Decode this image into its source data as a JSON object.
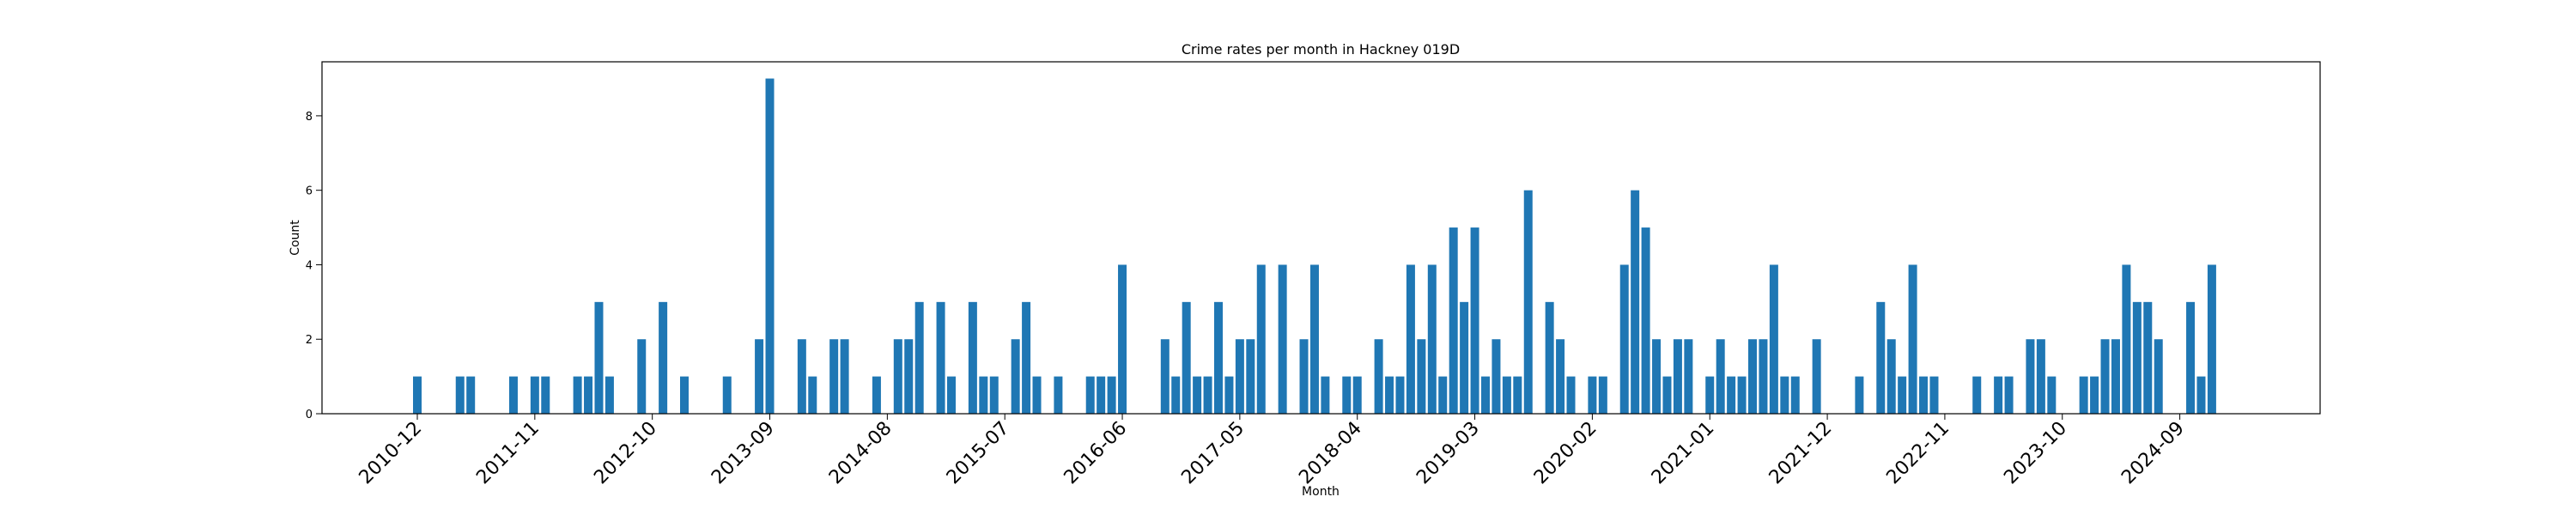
{
  "chart_data": {
    "type": "bar",
    "title": "Crime rates per month in Hackney 019D",
    "xlabel": "Month",
    "ylabel": "Count",
    "ylim": [
      0,
      9.45
    ],
    "yticks": [
      0,
      2,
      4,
      6,
      8
    ],
    "xtick_labels": [
      "2010-12",
      "2011-11",
      "2012-10",
      "2013-09",
      "2014-08",
      "2015-07",
      "2016-06",
      "2017-05",
      "2018-04",
      "2019-03",
      "2020-02",
      "2021-01",
      "2021-12",
      "2022-11",
      "2023-10",
      "2024-09"
    ],
    "color": "#1f77b4",
    "grid": false,
    "series": [
      {
        "points": [
          [
            "2010-12",
            1
          ],
          [
            "2011-04",
            1
          ],
          [
            "2011-05",
            1
          ],
          [
            "2011-09",
            1
          ],
          [
            "2011-11",
            1
          ],
          [
            "2011-12",
            1
          ],
          [
            "2012-03",
            1
          ],
          [
            "2012-04",
            1
          ],
          [
            "2012-05",
            3
          ],
          [
            "2012-06",
            1
          ],
          [
            "2012-09",
            2
          ],
          [
            "2012-11",
            3
          ],
          [
            "2013-01",
            1
          ],
          [
            "2013-05",
            1
          ],
          [
            "2013-08",
            2
          ],
          [
            "2013-09",
            9
          ],
          [
            "2013-12",
            2
          ],
          [
            "2014-01",
            1
          ],
          [
            "2014-03",
            2
          ],
          [
            "2014-04",
            2
          ],
          [
            "2014-07",
            1
          ],
          [
            "2014-09",
            2
          ],
          [
            "2014-10",
            2
          ],
          [
            "2014-11",
            3
          ],
          [
            "2015-01",
            3
          ],
          [
            "2015-02",
            1
          ],
          [
            "2015-04",
            3
          ],
          [
            "2015-05",
            1
          ],
          [
            "2015-06",
            1
          ],
          [
            "2015-08",
            2
          ],
          [
            "2015-09",
            3
          ],
          [
            "2015-10",
            1
          ],
          [
            "2015-12",
            1
          ],
          [
            "2016-03",
            1
          ],
          [
            "2016-04",
            1
          ],
          [
            "2016-05",
            1
          ],
          [
            "2016-06",
            4
          ],
          [
            "2016-10",
            2
          ],
          [
            "2016-11",
            1
          ],
          [
            "2016-12",
            3
          ],
          [
            "2017-01",
            1
          ],
          [
            "2017-02",
            1
          ],
          [
            "2017-03",
            3
          ],
          [
            "2017-04",
            1
          ],
          [
            "2017-05",
            2
          ],
          [
            "2017-06",
            2
          ],
          [
            "2017-07",
            4
          ],
          [
            "2017-09",
            4
          ],
          [
            "2017-11",
            2
          ],
          [
            "2017-12",
            4
          ],
          [
            "2018-01",
            1
          ],
          [
            "2018-03",
            1
          ],
          [
            "2018-04",
            1
          ],
          [
            "2018-06",
            2
          ],
          [
            "2018-07",
            1
          ],
          [
            "2018-08",
            1
          ],
          [
            "2018-09",
            4
          ],
          [
            "2018-10",
            2
          ],
          [
            "2018-11",
            4
          ],
          [
            "2018-12",
            1
          ],
          [
            "2019-01",
            5
          ],
          [
            "2019-02",
            3
          ],
          [
            "2019-03",
            5
          ],
          [
            "2019-04",
            1
          ],
          [
            "2019-05",
            2
          ],
          [
            "2019-06",
            1
          ],
          [
            "2019-07",
            1
          ],
          [
            "2019-08",
            6
          ],
          [
            "2019-10",
            3
          ],
          [
            "2019-11",
            2
          ],
          [
            "2019-12",
            1
          ],
          [
            "2020-02",
            1
          ],
          [
            "2020-03",
            1
          ],
          [
            "2020-05",
            4
          ],
          [
            "2020-06",
            6
          ],
          [
            "2020-07",
            5
          ],
          [
            "2020-08",
            2
          ],
          [
            "2020-09",
            1
          ],
          [
            "2020-10",
            2
          ],
          [
            "2020-11",
            2
          ],
          [
            "2021-01",
            1
          ],
          [
            "2021-02",
            2
          ],
          [
            "2021-03",
            1
          ],
          [
            "2021-04",
            1
          ],
          [
            "2021-05",
            2
          ],
          [
            "2021-06",
            2
          ],
          [
            "2021-07",
            4
          ],
          [
            "2021-08",
            1
          ],
          [
            "2021-09",
            1
          ],
          [
            "2021-11",
            2
          ],
          [
            "2022-03",
            1
          ],
          [
            "2022-05",
            3
          ],
          [
            "2022-06",
            2
          ],
          [
            "2022-07",
            1
          ],
          [
            "2022-08",
            4
          ],
          [
            "2022-09",
            1
          ],
          [
            "2022-10",
            1
          ],
          [
            "2023-02",
            1
          ],
          [
            "2023-04",
            1
          ],
          [
            "2023-05",
            1
          ],
          [
            "2023-07",
            2
          ],
          [
            "2023-08",
            2
          ],
          [
            "2023-09",
            1
          ],
          [
            "2023-12",
            1
          ],
          [
            "2024-01",
            1
          ],
          [
            "2024-02",
            2
          ],
          [
            "2024-03",
            2
          ],
          [
            "2024-04",
            4
          ],
          [
            "2024-05",
            3
          ],
          [
            "2024-06",
            3
          ],
          [
            "2024-07",
            2
          ],
          [
            "2024-10",
            3
          ],
          [
            "2024-11",
            1
          ],
          [
            "2024-12",
            4
          ]
        ]
      }
    ]
  }
}
